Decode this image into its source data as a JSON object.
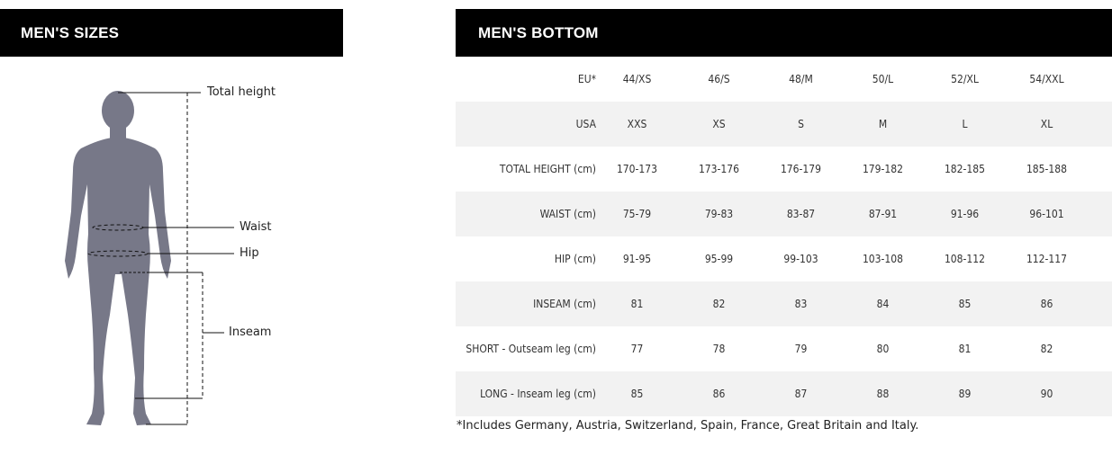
{
  "left_panel": {
    "title": "MEN'S SIZES",
    "labels": {
      "total_height": "Total height",
      "waist": "Waist",
      "hip": "Hip",
      "inseam": "Inseam"
    },
    "figure_color": "#777888"
  },
  "right_panel": {
    "title": "MEN'S BOTTOM",
    "rows": [
      {
        "label": "EU*",
        "values": [
          "44/XS",
          "46/S",
          "48/M",
          "50/L",
          "52/XL",
          "54/XXL"
        ]
      },
      {
        "label": "USA",
        "values": [
          "XXS",
          "XS",
          "S",
          "M",
          "L",
          "XL"
        ]
      },
      {
        "label": "TOTAL HEIGHT (cm)",
        "values": [
          "170-173",
          "173-176",
          "176-179",
          "179-182",
          "182-185",
          "185-188"
        ]
      },
      {
        "label": "WAIST (cm)",
        "values": [
          "75-79",
          "79-83",
          "83-87",
          "87-91",
          "91-96",
          "96-101"
        ]
      },
      {
        "label": "HIP (cm)",
        "values": [
          "91-95",
          "95-99",
          "99-103",
          "103-108",
          "108-112",
          "112-117"
        ]
      },
      {
        "label": "INSEAM (cm)",
        "values": [
          "81",
          "82",
          "83",
          "84",
          "85",
          "86"
        ]
      },
      {
        "label": "SHORT - Outseam leg (cm)",
        "values": [
          "77",
          "78",
          "79",
          "80",
          "81",
          "82"
        ]
      },
      {
        "label": "LONG - Inseam leg (cm)",
        "values": [
          "85",
          "86",
          "87",
          "88",
          "89",
          "90"
        ]
      }
    ],
    "footnote": "*Includes Germany, Austria, Switzerland, Spain, France, Great Britain and Italy."
  }
}
